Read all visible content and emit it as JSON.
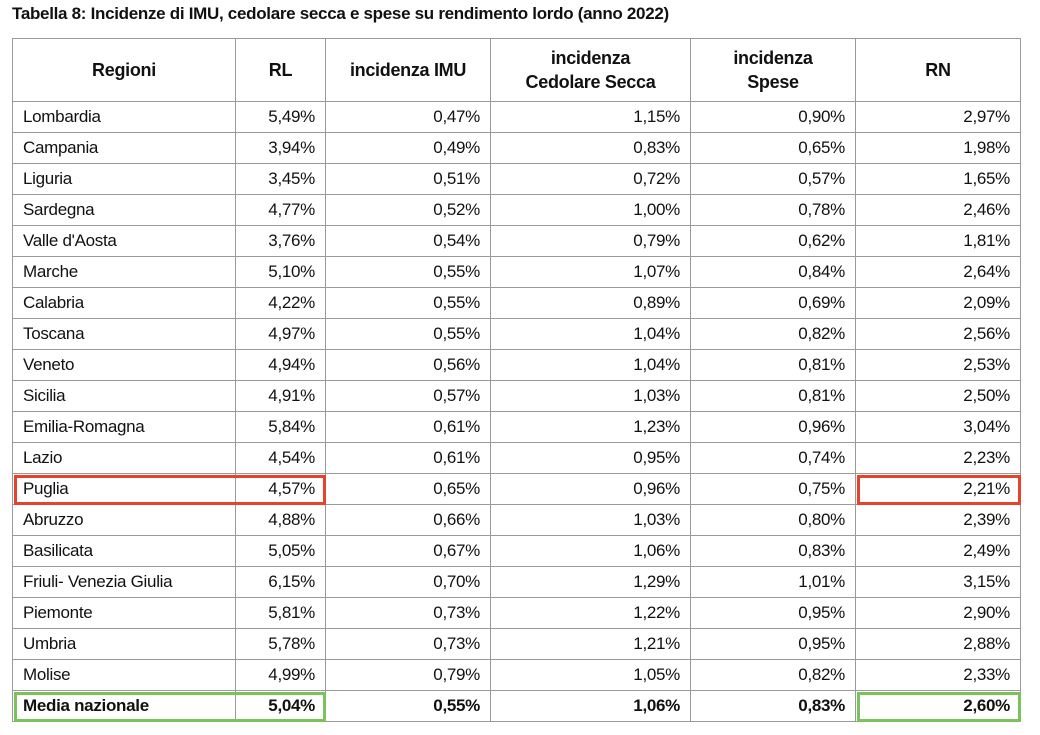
{
  "title": "Tabella 8: Incidenze di IMU, cedolare secca e spese su rendimento lordo (anno 2022)",
  "table": {
    "header": [
      "Regioni",
      "RL",
      "incidenza IMU",
      "incidenza\nCedolare Secca",
      "incidenza\nSpese",
      "RN"
    ],
    "rows": [
      [
        "Lombardia",
        "5,49%",
        "0,47%",
        "1,15%",
        "0,90%",
        "2,97%"
      ],
      [
        "Campania",
        "3,94%",
        "0,49%",
        "0,83%",
        "0,65%",
        "1,98%"
      ],
      [
        "Liguria",
        "3,45%",
        "0,51%",
        "0,72%",
        "0,57%",
        "1,65%"
      ],
      [
        "Sardegna",
        "4,77%",
        "0,52%",
        "1,00%",
        "0,78%",
        "2,46%"
      ],
      [
        "Valle d'Aosta",
        "3,76%",
        "0,54%",
        "0,79%",
        "0,62%",
        "1,81%"
      ],
      [
        "Marche",
        "5,10%",
        "0,55%",
        "1,07%",
        "0,84%",
        "2,64%"
      ],
      [
        "Calabria",
        "4,22%",
        "0,55%",
        "0,89%",
        "0,69%",
        "2,09%"
      ],
      [
        "Toscana",
        "4,97%",
        "0,55%",
        "1,04%",
        "0,82%",
        "2,56%"
      ],
      [
        "Veneto",
        "4,94%",
        "0,56%",
        "1,04%",
        "0,81%",
        "2,53%"
      ],
      [
        "Sicilia",
        "4,91%",
        "0,57%",
        "1,03%",
        "0,81%",
        "2,50%"
      ],
      [
        "Emilia-Romagna",
        "5,84%",
        "0,61%",
        "1,23%",
        "0,96%",
        "3,04%"
      ],
      [
        "Lazio",
        "4,54%",
        "0,61%",
        "0,95%",
        "0,74%",
        "2,23%"
      ],
      [
        "Puglia",
        "4,57%",
        "0,65%",
        "0,96%",
        "0,75%",
        "2,21%"
      ],
      [
        "Abruzzo",
        "4,88%",
        "0,66%",
        "1,03%",
        "0,80%",
        "2,39%"
      ],
      [
        "Basilicata",
        "5,05%",
        "0,67%",
        "1,06%",
        "0,83%",
        "2,49%"
      ],
      [
        "Friuli- Venezia Giulia",
        "6,15%",
        "0,70%",
        "1,29%",
        "1,01%",
        "3,15%"
      ],
      [
        "Piemonte",
        "5,81%",
        "0,73%",
        "1,22%",
        "0,95%",
        "2,90%"
      ],
      [
        "Umbria",
        "5,78%",
        "0,73%",
        "1,21%",
        "0,95%",
        "2,88%"
      ],
      [
        "Molise",
        "4,99%",
        "0,79%",
        "1,05%",
        "0,82%",
        "2,33%"
      ]
    ],
    "total": [
      "Media nazionale",
      "5,04%",
      "0,55%",
      "1,06%",
      "0,83%",
      "2,60%"
    ]
  }
}
